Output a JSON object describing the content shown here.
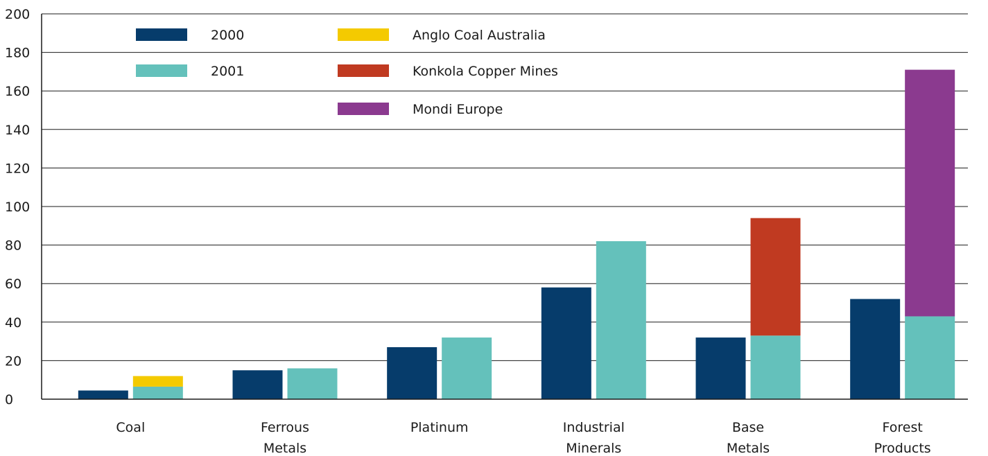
{
  "chart_data": {
    "type": "bar",
    "stacked_extras": true,
    "categories": [
      [
        "Coal"
      ],
      [
        "Ferrous",
        "Metals"
      ],
      [
        "Platinum"
      ],
      [
        "Industrial",
        "Minerals"
      ],
      [
        "Base",
        "Metals"
      ],
      [
        "Forest",
        "Products"
      ]
    ],
    "series": [
      {
        "name": "2000",
        "color": "#063c6b",
        "values": [
          4.5,
          15,
          27,
          58,
          32,
          52
        ]
      },
      {
        "name": "2001",
        "color": "#64c1bb",
        "values": [
          6.5,
          16,
          32,
          82,
          33,
          43
        ]
      }
    ],
    "acquisitions": [
      {
        "name": "Anglo Coal Australia",
        "color": "#f4ca00",
        "category_index": 0,
        "stacked_on": "2001",
        "value": 5.5
      },
      {
        "name": "Konkola Copper Mines",
        "color": "#c03a21",
        "category_index": 4,
        "stacked_on": "2001",
        "value": 61
      },
      {
        "name": "Mondi Europe",
        "color": "#8b3a8f",
        "category_index": 5,
        "stacked_on": "2001",
        "value": 128
      }
    ],
    "yticks": [
      0,
      20,
      40,
      60,
      80,
      100,
      120,
      140,
      160,
      180,
      200
    ],
    "ylim": [
      0,
      200
    ],
    "grid": true,
    "legend_position": "top-left",
    "title": "",
    "xlabel": "",
    "ylabel": ""
  }
}
